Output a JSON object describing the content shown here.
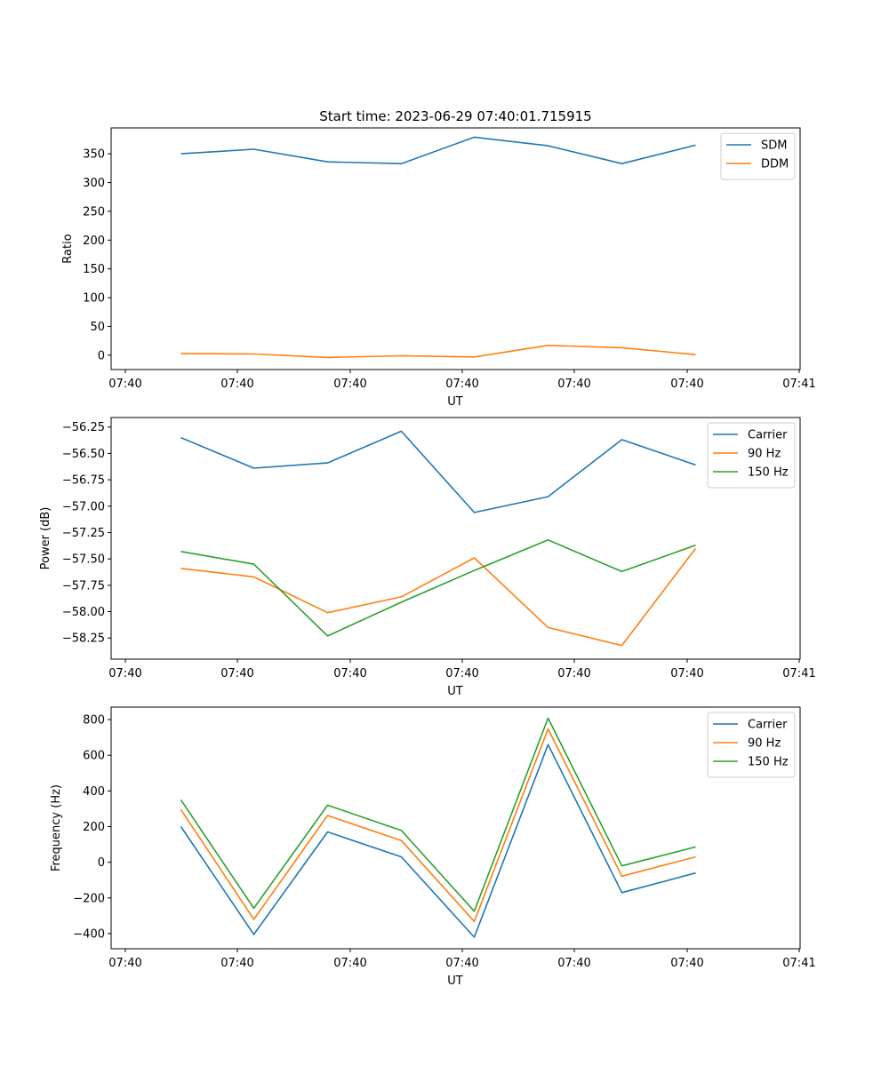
{
  "figure": {
    "title": "Start time: 2023-06-29 07:40:01.715915"
  },
  "chart_data": [
    {
      "type": "line",
      "xlabel": "UT",
      "ylabel": "Ratio",
      "x_tick_labels": [
        "07:40",
        "07:40",
        "07:40",
        "07:40",
        "07:40",
        "07:40",
        "07:40",
        "07:41"
      ],
      "ylim": [
        -25,
        395
      ],
      "y_ticks": [
        0,
        50,
        100,
        150,
        200,
        250,
        300,
        350
      ],
      "y_tick_labels": [
        "0",
        "50",
        "100",
        "150",
        "200",
        "250",
        "300",
        "350"
      ],
      "legend_position": "top-right",
      "series": [
        {
          "name": "SDM",
          "color": "#1f77b4",
          "values": [
            350,
            358,
            336,
            333,
            379,
            364,
            333,
            365
          ]
        },
        {
          "name": "DDM",
          "color": "#ff7f0e",
          "values": [
            3,
            2,
            -4,
            -1,
            -3,
            17,
            13,
            1
          ]
        }
      ]
    },
    {
      "type": "line",
      "xlabel": "UT",
      "ylabel": "Power (dB)",
      "x_tick_labels": [
        "07:40",
        "07:40",
        "07:40",
        "07:40",
        "07:40",
        "07:40",
        "07:40",
        "07:41"
      ],
      "ylim": [
        -58.45,
        -56.16
      ],
      "y_ticks": [
        -56.25,
        -56.5,
        -56.75,
        -57.0,
        -57.25,
        -57.5,
        -57.75,
        -58.0,
        -58.25
      ],
      "y_tick_labels": [
        "−56.25",
        "−56.50",
        "−56.75",
        "−57.00",
        "−57.25",
        "−57.50",
        "−57.75",
        "−58.00",
        "−58.25"
      ],
      "legend_position": "top-right",
      "series": [
        {
          "name": "Carrier",
          "color": "#1f77b4",
          "values": [
            -56.35,
            -56.64,
            -56.59,
            -56.29,
            -57.06,
            -56.91,
            -56.37,
            -56.61
          ]
        },
        {
          "name": "90 Hz",
          "color": "#ff7f0e",
          "values": [
            -57.59,
            -57.67,
            -58.01,
            -57.86,
            -57.49,
            -58.15,
            -58.32,
            -57.4
          ]
        },
        {
          "name": "150 Hz",
          "color": "#2ca02c",
          "values": [
            -57.43,
            -57.55,
            -58.23,
            -57.91,
            -57.61,
            -57.32,
            -57.62,
            -57.37
          ]
        }
      ]
    },
    {
      "type": "line",
      "xlabel": "UT",
      "ylabel": "Frequency (Hz)",
      "x_tick_labels": [
        "07:40",
        "07:40",
        "07:40",
        "07:40",
        "07:40",
        "07:40",
        "07:40",
        "07:41"
      ],
      "ylim": [
        -485,
        870
      ],
      "y_ticks": [
        -400,
        -200,
        0,
        200,
        400,
        600,
        800
      ],
      "y_tick_labels": [
        "−400",
        "−200",
        "0",
        "200",
        "400",
        "600",
        "800"
      ],
      "legend_position": "top-right",
      "series": [
        {
          "name": "Carrier",
          "color": "#1f77b4",
          "values": [
            200,
            -405,
            170,
            30,
            -420,
            660,
            -170,
            -60
          ]
        },
        {
          "name": "90 Hz",
          "color": "#ff7f0e",
          "values": [
            295,
            -320,
            262,
            122,
            -332,
            748,
            -78,
            30
          ]
        },
        {
          "name": "150 Hz",
          "color": "#2ca02c",
          "values": [
            350,
            -258,
            320,
            178,
            -275,
            808,
            -20,
            86
          ]
        }
      ]
    }
  ]
}
